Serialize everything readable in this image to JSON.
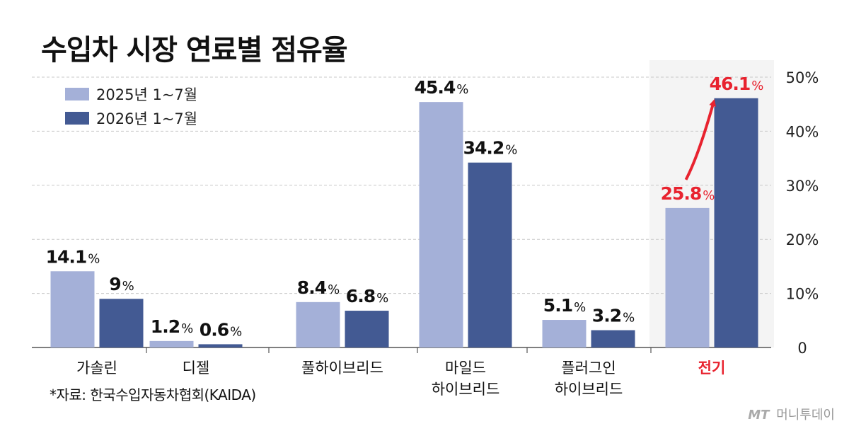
{
  "title": "수입차 시장 연료별 점유율",
  "legend": [
    {
      "label": "2025년 1~7월",
      "color": "#a4b0d8"
    },
    {
      "label": "2026년 1~7월",
      "color": "#435a93"
    }
  ],
  "source": "*자료: 한국수입자동차협회(KAIDA)",
  "watermark": {
    "logo": "MT",
    "text": "머니투데이"
  },
  "colors": {
    "highlight": "#e8232f",
    "grid": "#c8c8c8",
    "highlight_bg": "#f4f4f4"
  },
  "chart_data": {
    "type": "bar",
    "categories": [
      {
        "label": [
          "가솔린"
        ],
        "highlight": false
      },
      {
        "label": [
          "디젤"
        ],
        "highlight": false
      },
      {
        "label": [
          "풀하이브리드"
        ],
        "highlight": false
      },
      {
        "label": [
          "마일드",
          "하이브리드"
        ],
        "highlight": false
      },
      {
        "label": [
          "플러그인",
          "하이브리드"
        ],
        "highlight": false
      },
      {
        "label": [
          "전기"
        ],
        "highlight": true
      }
    ],
    "series": [
      {
        "name": "2025년 1~7월",
        "values": [
          14.1,
          1.2,
          8.4,
          45.4,
          5.1,
          25.8
        ],
        "labels": [
          "14.1",
          "1.2",
          "8.4",
          "45.4",
          "5.1",
          "25.8"
        ]
      },
      {
        "name": "2026년 1~7월",
        "values": [
          9,
          0.6,
          6.8,
          34.2,
          3.2,
          46.1
        ],
        "labels": [
          "9",
          "0.6",
          "6.8",
          "34.2",
          "3.2",
          "46.1"
        ]
      }
    ],
    "unit": "%",
    "ylim": [
      0,
      50
    ],
    "yticks": [
      {
        "value": 0,
        "label": "0"
      },
      {
        "value": 10,
        "label": "10%"
      },
      {
        "value": 20,
        "label": "20%"
      },
      {
        "value": 30,
        "label": "30%"
      },
      {
        "value": 40,
        "label": "40%"
      },
      {
        "value": 50,
        "label": "50%"
      }
    ],
    "grid": true,
    "y_axis_position": "right",
    "legend_position": "top-left",
    "annotation": {
      "type": "arrow",
      "from_category": 5,
      "from_series": 0,
      "to_series": 1,
      "color": "#e8232f"
    }
  }
}
